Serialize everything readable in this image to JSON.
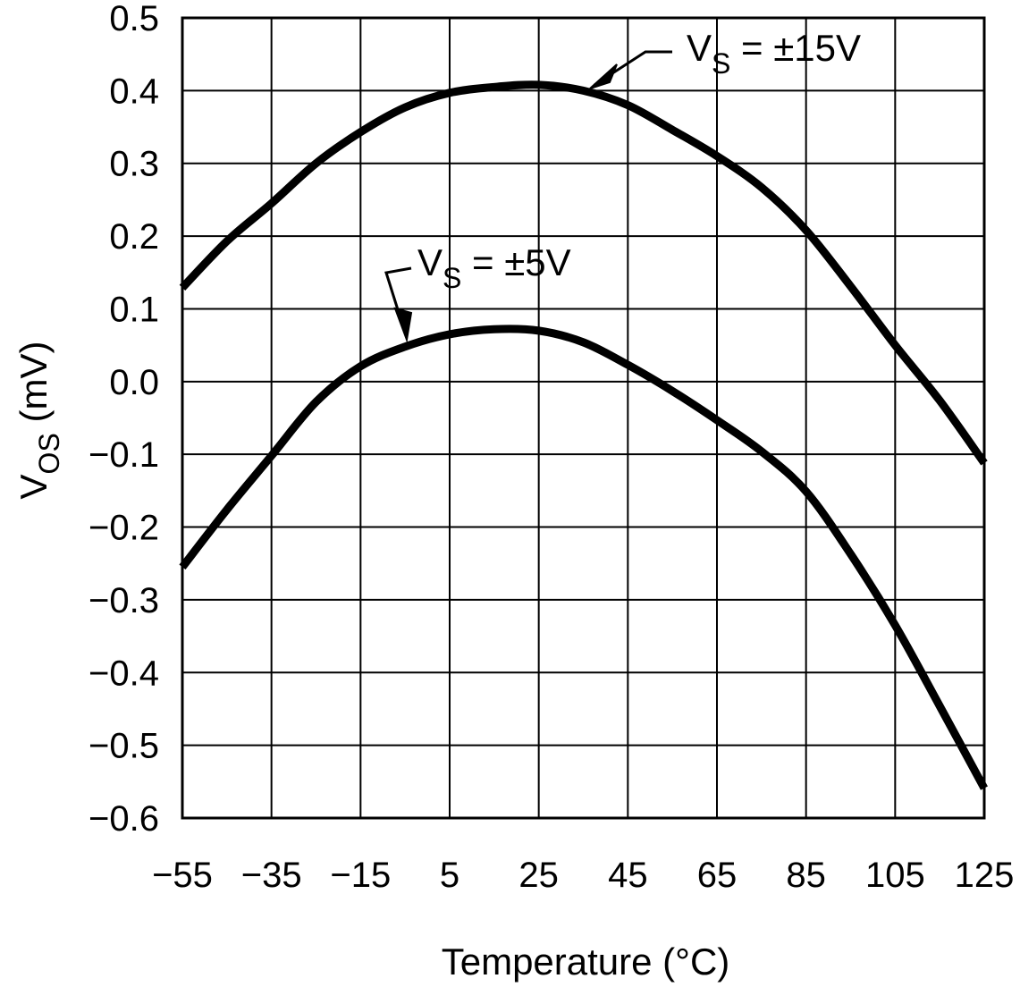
{
  "chart_data": {
    "type": "line",
    "title": "",
    "xlabel": "Temperature (°C)",
    "ylabel": {
      "main": "V",
      "sub": "OS",
      "unit": " (mV)"
    },
    "xlim": [
      -55,
      125
    ],
    "ylim": [
      -0.6,
      0.5
    ],
    "grid": true,
    "x_ticks": [
      -55,
      -35,
      -15,
      5,
      25,
      45,
      65,
      85,
      105,
      125
    ],
    "x_tick_labels": [
      "−55",
      "−35",
      "−15",
      "5",
      "25",
      "45",
      "65",
      "85",
      "105",
      "125"
    ],
    "y_ticks": [
      0.5,
      0.4,
      0.3,
      0.2,
      0.1,
      0.0,
      -0.1,
      -0.2,
      -0.3,
      -0.4,
      -0.5,
      -0.6
    ],
    "y_tick_labels": [
      "0.5",
      "0.4",
      "0.3",
      "0.2",
      "0.1",
      "0.0",
      "−0.1",
      "−0.2",
      "−0.3",
      "−0.4",
      "−0.5",
      "−0.6"
    ],
    "x": [
      -55,
      -45,
      -35,
      -25,
      -15,
      -5,
      5,
      15,
      25,
      35,
      45,
      55,
      65,
      75,
      85,
      95,
      105,
      115,
      125
    ],
    "series": [
      {
        "name": "±15V",
        "label": {
          "main": "V",
          "sub": "S",
          "rest": " = ±15V"
        },
        "values": [
          0.129,
          0.193,
          0.245,
          0.3,
          0.343,
          0.377,
          0.397,
          0.405,
          0.408,
          0.4,
          0.38,
          0.346,
          0.31,
          0.267,
          0.208,
          0.131,
          0.05,
          -0.026,
          -0.112
        ]
      },
      {
        "name": "±5V",
        "label": {
          "main": "V",
          "sub": "S",
          "rest": " = ±5V"
        },
        "values": [
          -0.255,
          -0.176,
          -0.102,
          -0.028,
          0.021,
          0.048,
          0.065,
          0.072,
          0.07,
          0.054,
          0.023,
          -0.013,
          -0.053,
          -0.096,
          -0.151,
          -0.237,
          -0.335,
          -0.446,
          -0.559
        ]
      }
    ]
  }
}
